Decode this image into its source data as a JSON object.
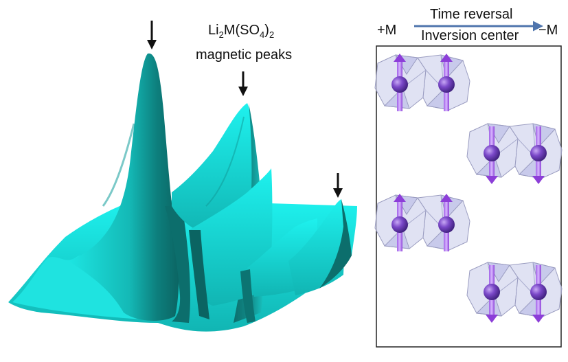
{
  "title": {
    "formula": {
      "base": "Li",
      "sub1": "2",
      "mid": "M(SO",
      "sub2": "4",
      "close": ")",
      "sub3": "2"
    },
    "subtitle": "magnetic peaks"
  },
  "peak_arrows": {
    "count": 3,
    "color": "#111111"
  },
  "surface": {
    "colors": {
      "light": "#1ef1ee",
      "mid": "#11b5b3",
      "dark": "#0c6e6c"
    }
  },
  "symmetry": {
    "left_label": "+M",
    "right_label": "−M",
    "top_text": "Time reversal",
    "bottom_text": "Inversion center",
    "arrow_color": "#4f75ad"
  },
  "structure": {
    "units": [
      {
        "spin": "up"
      },
      {
        "spin": "down"
      },
      {
        "spin": "up"
      },
      {
        "spin": "down"
      }
    ],
    "colors": {
      "spin": "#8c3ed8",
      "atom": "#6a3fb0",
      "polyhedron": "#c7c9ea"
    }
  }
}
